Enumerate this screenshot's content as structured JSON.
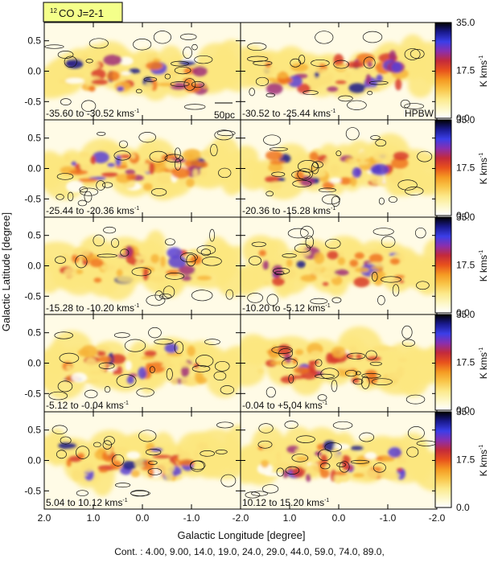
{
  "chart_data": {
    "type": "heatmap",
    "title": "CO J=2-1",
    "title_superscript": "12",
    "xlabel": "Galactic Longitude [degree]",
    "ylabel": "Galactic Latitude [degree]",
    "x_range": [
      2.0,
      -2.0
    ],
    "y_range": [
      -0.8,
      0.8
    ],
    "x_ticks": [
      "2.0",
      "1.0",
      "0.0",
      "-1.0",
      "-2.0"
    ],
    "y_ticks": [
      "0.5",
      "0.0",
      "-0.5"
    ],
    "colorbar": {
      "label": "K kms",
      "label_superscript": "-1",
      "min": 0.0,
      "max": 35.0,
      "ticks": [
        "35.0",
        "17.5",
        "0.0"
      ],
      "colors": [
        "#ffffff",
        "#fdf7c6",
        "#fce98a",
        "#f9c64a",
        "#f59a22",
        "#e8511c",
        "#c42a3a",
        "#8a2fae",
        "#3b3ee8",
        "#1a1a8e",
        "#000000"
      ]
    },
    "contours_caption": "Cont. : 4.00, 9.00, 14.0, 19.0, 24.0, 29.0, 44.0, 59.0, 74.0, 89.0,",
    "scale_bar_label": "50pc",
    "beam_label": "HPBW",
    "velocity_unit": "kms",
    "velocity_unit_sup": "-1",
    "panels": [
      {
        "range": "-35.60 to  -30.52",
        "v_lo": -35.6,
        "v_hi": -30.52,
        "intensity": 0.55
      },
      {
        "range": "-30.52 to  -25.44",
        "v_lo": -30.52,
        "v_hi": -25.44,
        "intensity": 0.6
      },
      {
        "range": "-25.44 to  -20.36",
        "v_lo": -25.44,
        "v_hi": -20.36,
        "intensity": 0.7
      },
      {
        "range": "-20.36 to  -15.28",
        "v_lo": -20.36,
        "v_hi": -15.28,
        "intensity": 0.65
      },
      {
        "range": "-15.28 to  -10.20",
        "v_lo": -15.28,
        "v_hi": -10.2,
        "intensity": 0.5
      },
      {
        "range": "-10.20 to   -5.12",
        "v_lo": -10.2,
        "v_hi": -5.12,
        "intensity": 0.55
      },
      {
        "range": "-5.12 to   -0.04",
        "v_lo": -5.12,
        "v_hi": -0.04,
        "intensity": 0.6
      },
      {
        "range": "-0.04 to  +5.04",
        "v_lo": -0.04,
        "v_hi": 5.04,
        "intensity": 0.55
      },
      {
        "range": "5.04 to  10.12",
        "v_lo": 5.04,
        "v_hi": 10.12,
        "intensity": 0.7
      },
      {
        "range": "10.12 to  15.20",
        "v_lo": 10.12,
        "v_hi": 15.2,
        "intensity": 0.75
      }
    ]
  }
}
